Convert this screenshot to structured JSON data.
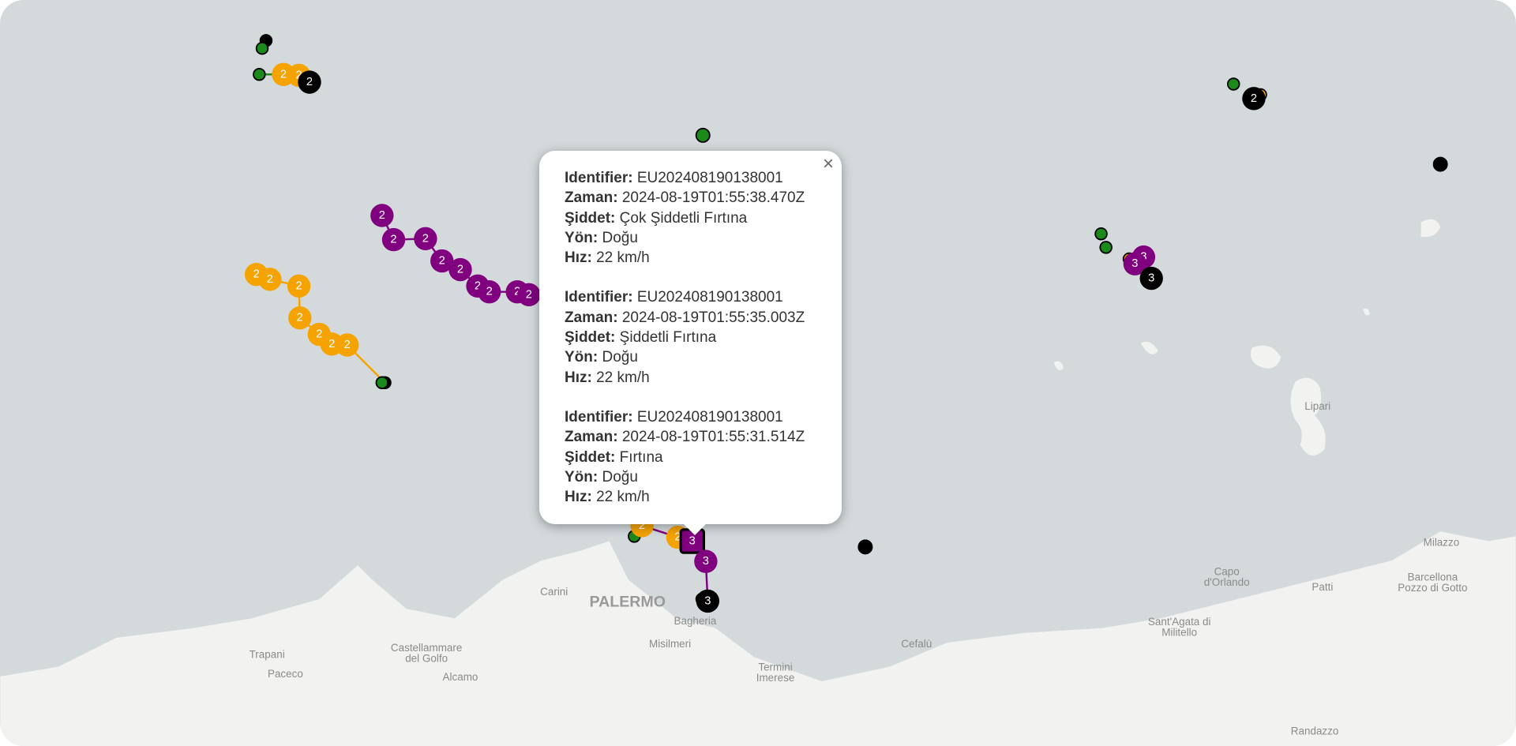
{
  "popup": {
    "close": "×",
    "entries": [
      {
        "fields": [
          {
            "label": "Identifier:",
            "value": "EU202408190138001"
          },
          {
            "label": "Zaman:",
            "value": "2024-08-19T01:55:38.470Z"
          },
          {
            "label": "Şiddet:",
            "value": "Çok Şiddetli Fırtına"
          },
          {
            "label": "Yön:",
            "value": "Doğu"
          },
          {
            "label": "Hız:",
            "value": "22 km/h"
          }
        ]
      },
      {
        "fields": [
          {
            "label": "Identifier:",
            "value": "EU202408190138001"
          },
          {
            "label": "Zaman:",
            "value": "2024-08-19T01:55:35.003Z"
          },
          {
            "label": "Şiddet:",
            "value": "Şiddetli Fırtına"
          },
          {
            "label": "Yön:",
            "value": "Doğu"
          },
          {
            "label": "Hız:",
            "value": "22 km/h"
          }
        ]
      },
      {
        "fields": [
          {
            "label": "Identifier:",
            "value": "EU202408190138001"
          },
          {
            "label": "Zaman:",
            "value": "2024-08-19T01:55:31.514Z"
          },
          {
            "label": "Şiddet:",
            "value": "Fırtına"
          },
          {
            "label": "Yön:",
            "value": "Doğu"
          },
          {
            "label": "Hız:",
            "value": "22 km/h"
          }
        ]
      }
    ]
  },
  "places": [
    {
      "lines": [
        "PALERMO"
      ]
    },
    {
      "lines": [
        "Carini"
      ]
    },
    {
      "lines": [
        "Bagheria"
      ]
    },
    {
      "lines": [
        "Misilmeri"
      ]
    },
    {
      "lines": [
        "Castellammare",
        "del Golfo"
      ]
    },
    {
      "lines": [
        "Trapani"
      ]
    },
    {
      "lines": [
        "Paceco"
      ]
    },
    {
      "lines": [
        "Alcamo"
      ]
    },
    {
      "lines": [
        "Termini",
        "Imerese"
      ]
    },
    {
      "lines": [
        "Cefalù"
      ]
    },
    {
      "lines": [
        "Capo",
        "d'Orlando"
      ]
    },
    {
      "lines": [
        "Patti"
      ]
    },
    {
      "lines": [
        "Sant'Agata di",
        "Militello"
      ]
    },
    {
      "lines": [
        "Barcellona",
        "Pozzo di Gotto"
      ]
    },
    {
      "lines": [
        "Milazzo"
      ]
    },
    {
      "lines": [
        "Lipari"
      ]
    },
    {
      "lines": [
        "Randazzo"
      ]
    }
  ],
  "tracks": [
    {
      "labels": [
        "2",
        "2",
        "2"
      ]
    },
    {
      "labels": [
        "2",
        "2",
        "2",
        "2",
        "2",
        "2",
        "2"
      ]
    },
    {
      "labels": [
        "2",
        "2",
        "2",
        "2",
        "2",
        "2",
        "2",
        "2",
        "2"
      ]
    },
    {
      "labels": [
        "2"
      ]
    },
    {
      "labels": [
        "3",
        "3",
        "3"
      ]
    },
    {
      "labels": [
        "2",
        "2",
        "3",
        "3",
        "3"
      ]
    }
  ]
}
